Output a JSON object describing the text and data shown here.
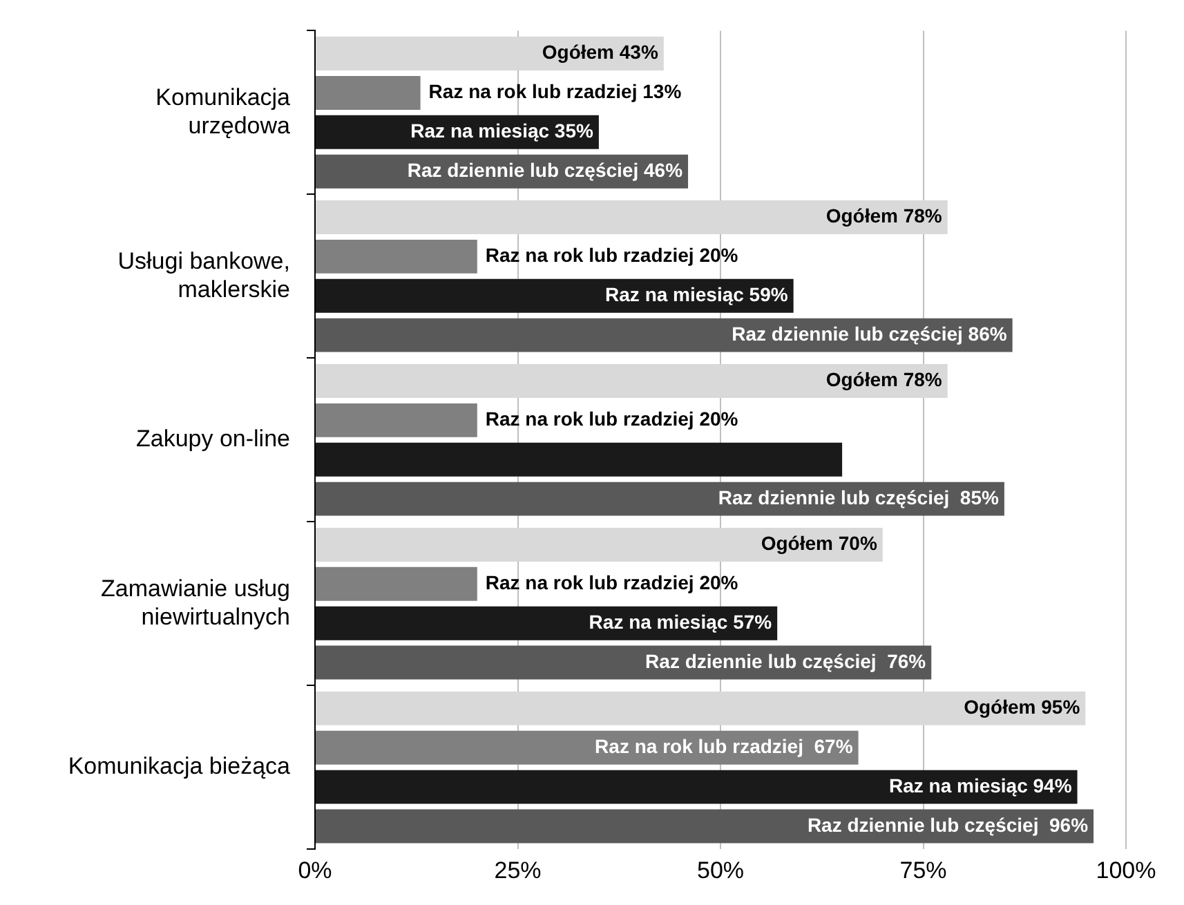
{
  "chart_data": {
    "type": "bar",
    "orientation": "horizontal",
    "categories": [
      "Komunikacja\nurzędowa",
      "Usługi bankowe,\nmaklerskie",
      "Zakupy on-line",
      "Zamawianie usług\nniewirtualnych",
      "Komunikacja bieżąca"
    ],
    "series": [
      {
        "color": "#d9d9d9",
        "values": [
          43,
          78,
          78,
          70,
          95
        ],
        "value_labels": [
          "Ogółem 43%",
          "Ogółem 78%",
          "Ogółem 78%",
          "Ogółem 70%",
          "Ogółem 95%"
        ]
      },
      {
        "color": "#808080",
        "values": [
          13,
          20,
          20,
          20,
          67
        ],
        "value_labels": [
          "Raz na rok lub rzadziej 13%",
          "Raz na rok lub rzadziej 20%",
          "Raz na rok lub rzadziej 20%",
          "Raz na rok lub rzadziej 20%",
          "Raz na rok lub rzadziej  67%"
        ]
      },
      {
        "color": "#1a1a1a",
        "values": [
          35,
          59,
          65,
          57,
          94
        ],
        "value_labels": [
          "Raz na miesiąc 35%",
          "Raz na miesiąc 59%",
          null,
          "Raz na miesiąc 57%",
          "Raz na miesiąc 94%"
        ]
      },
      {
        "color": "#595959",
        "values": [
          46,
          86,
          85,
          76,
          96
        ],
        "value_labels": [
          "Raz dziennie lub częściej 46%",
          "Raz dziennie lub częściej 86%",
          "Raz dziennie lub częściej  85%",
          "Raz dziennie lub częściej  76%",
          "Raz dziennie lub częściej  96%"
        ]
      }
    ],
    "xlim": [
      0,
      100
    ],
    "xticks": [
      {
        "value": 0,
        "label": "0%"
      },
      {
        "value": 25,
        "label": "25%"
      },
      {
        "value": 50,
        "label": "50%"
      },
      {
        "value": 75,
        "label": "75%"
      },
      {
        "value": 100,
        "label": "100%"
      }
    ],
    "grid": "x",
    "legend": false
  }
}
